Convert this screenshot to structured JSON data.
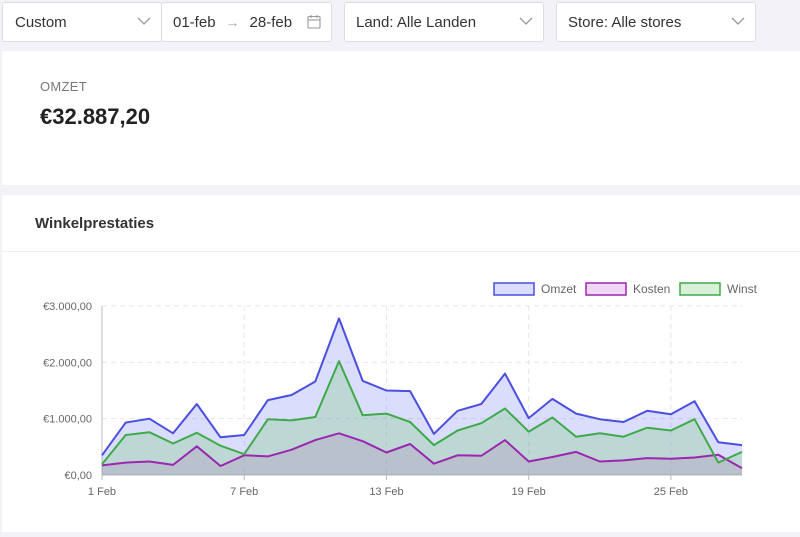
{
  "filters": {
    "period": "Custom",
    "date_from": "01-feb",
    "date_arrow": "→",
    "date_to": "28-feb",
    "country": "Land: Alle Landen",
    "store": "Store: Alle stores"
  },
  "revenue_card": {
    "label": "OMZET",
    "value": "€32.887,20"
  },
  "chart_card": {
    "title": "Winkelprestaties"
  },
  "chart_data": {
    "type": "area",
    "x": [
      "1 Feb",
      "2 Feb",
      "3 Feb",
      "4 Feb",
      "5 Feb",
      "6 Feb",
      "7 Feb",
      "8 Feb",
      "9 Feb",
      "10 Feb",
      "11 Feb",
      "12 Feb",
      "13 Feb",
      "14 Feb",
      "15 Feb",
      "16 Feb",
      "17 Feb",
      "18 Feb",
      "19 Feb",
      "20 Feb",
      "21 Feb",
      "22 Feb",
      "23 Feb",
      "24 Feb",
      "25 Feb",
      "26 Feb",
      "27 Feb",
      "28 Feb"
    ],
    "x_tick_labels": [
      "1 Feb",
      "7 Feb",
      "13 Feb",
      "19 Feb",
      "25 Feb"
    ],
    "y_tick_labels": [
      "€0,00",
      "€1.000,00",
      "€2.000,00",
      "€3.000,00"
    ],
    "ylim": [
      0,
      3000
    ],
    "grid": true,
    "legend_position": "top-right",
    "series": [
      {
        "name": "Omzet",
        "color": "#4b4fe0",
        "fill": "rgba(90,100,240,0.22)",
        "values": [
          350,
          930,
          1000,
          740,
          1260,
          670,
          710,
          1330,
          1420,
          1660,
          2780,
          1670,
          1500,
          1490,
          730,
          1140,
          1260,
          1800,
          1010,
          1350,
          1090,
          990,
          940,
          1140,
          1080,
          1310,
          580,
          530
        ]
      },
      {
        "name": "Kosten",
        "color": "#9b27b0",
        "fill": "rgba(200,110,215,0.28)",
        "values": [
          170,
          220,
          240,
          180,
          510,
          160,
          350,
          330,
          450,
          620,
          740,
          600,
          400,
          550,
          200,
          350,
          340,
          620,
          240,
          320,
          410,
          240,
          260,
          300,
          290,
          310,
          360,
          120
        ]
      },
      {
        "name": "Winst",
        "color": "#3faa4a",
        "fill": "rgba(110,200,110,0.28)",
        "values": [
          190,
          710,
          760,
          560,
          750,
          520,
          370,
          990,
          970,
          1030,
          2020,
          1060,
          1090,
          940,
          530,
          790,
          920,
          1180,
          770,
          1020,
          680,
          740,
          680,
          840,
          790,
          990,
          220,
          410
        ]
      }
    ]
  }
}
